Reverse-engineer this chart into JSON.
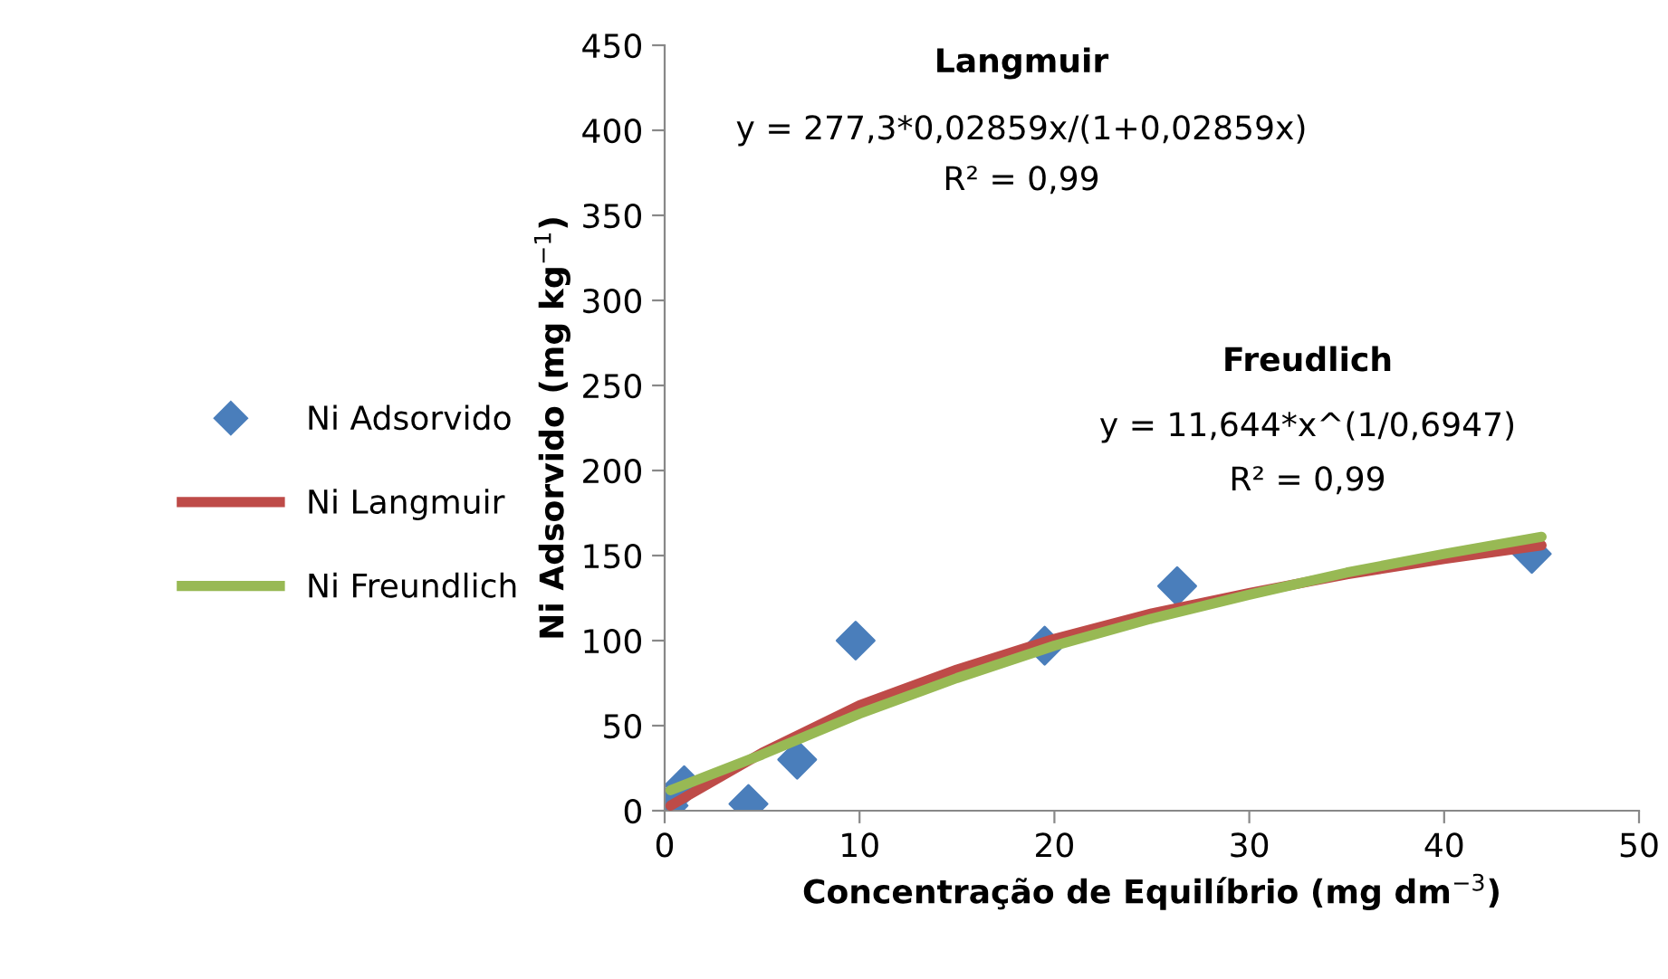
{
  "chart_data": {
    "type": "scatter",
    "xlabel": "Concentração de Equilíbrio (mg dm$^{−3}$)",
    "ylabel": "Ni Adsorvido (mg kg$^{−1}$)",
    "series": [
      {
        "name": "Ni Adsorvido",
        "color": "#4a7ebb",
        "marker": "diamond",
        "x": [
          0.2,
          1.0,
          4.3,
          6.8,
          9.8,
          19.5,
          26.3,
          44.5
        ],
        "values": [
          3,
          15,
          4,
          30,
          100,
          97,
          132,
          151
        ]
      },
      {
        "name": "Ni Langmuir",
        "type": "line",
        "color": "#be4b48",
        "x": [
          0.3,
          5,
          10,
          15,
          20,
          25,
          30,
          35,
          40,
          45
        ],
        "values": [
          3,
          34,
          62,
          83,
          101,
          116,
          128,
          139,
          148,
          156
        ]
      },
      {
        "name": "Ni Freundlich",
        "type": "line",
        "color": "#98b954",
        "x": [
          0.3,
          5,
          10,
          15,
          20,
          25,
          30,
          35,
          40,
          45
        ],
        "values": [
          12,
          33,
          57,
          78,
          97,
          113,
          127,
          140,
          151,
          161
        ]
      }
    ],
    "xlim": [
      0,
      50
    ],
    "xticks": [
      0,
      10,
      20,
      30,
      40,
      50
    ],
    "ylim": [
      0,
      450
    ],
    "yticks": [
      0,
      50,
      100,
      150,
      200,
      250,
      300,
      350,
      400,
      450
    ],
    "grid": false,
    "legend": "left",
    "annotations": [
      "Langmuir",
      "y = 277,3*0,02859x/(1+0,02859x)",
      "R² = 0,99",
      "Freudlich",
      "y = 11,644*x^(1/0,6947)",
      "R² = 0,99"
    ]
  }
}
